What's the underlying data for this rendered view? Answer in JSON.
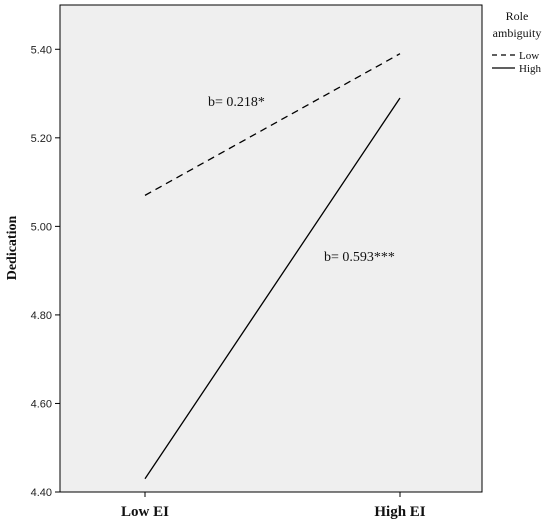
{
  "chart_data": {
    "type": "line",
    "categories": [
      "Low EI",
      "High EI"
    ],
    "series": [
      {
        "name": "Low",
        "values": [
          5.07,
          5.39
        ],
        "style": "dashed",
        "color": "#000000"
      },
      {
        "name": "High",
        "values": [
          4.43,
          5.29
        ],
        "style": "solid",
        "color": "#000000"
      }
    ],
    "ylabel": "Dedication",
    "ylim": [
      4.4,
      5.5
    ],
    "yticks": [
      "4.40",
      "4.60",
      "4.80",
      "5.00",
      "5.20",
      "5.40"
    ],
    "ytick_values": [
      4.4,
      4.6,
      4.8,
      5.0,
      5.2,
      5.4
    ],
    "legend": {
      "title_line1": "Role",
      "title_line2": "ambiguity",
      "placement": "right"
    },
    "annotations": [
      {
        "text": "b= 0.218*",
        "series": "Low"
      },
      {
        "text": "b= 0.593***",
        "series": "High"
      }
    ],
    "plot_background": "#efefef",
    "grid": false
  }
}
